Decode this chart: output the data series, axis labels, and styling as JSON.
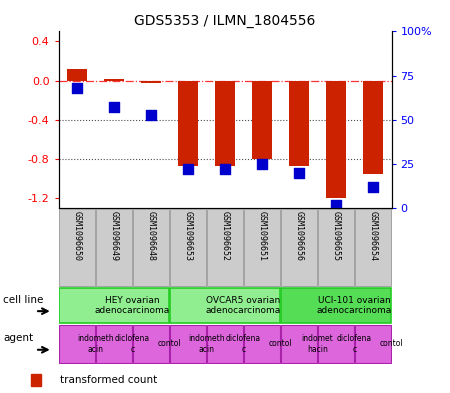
{
  "title": "GDS5353 / ILMN_1804556",
  "samples": [
    "GSM1096650",
    "GSM1096649",
    "GSM1096648",
    "GSM1096653",
    "GSM1096652",
    "GSM1096651",
    "GSM1096656",
    "GSM1096655",
    "GSM1096654"
  ],
  "red_values": [
    0.12,
    0.02,
    -0.02,
    -0.87,
    -0.87,
    -0.8,
    -0.87,
    -1.2,
    -0.95
  ],
  "blue_values": [
    68,
    57,
    53,
    22,
    22,
    25,
    20,
    2,
    12
  ],
  "ylim_left": [
    -1.3,
    0.5
  ],
  "ylim_right": [
    0,
    100
  ],
  "left_ticks": [
    -1.2,
    -0.8,
    -0.4,
    0.0,
    0.4
  ],
  "right_ticks": [
    0,
    25,
    50,
    75,
    100
  ],
  "right_tick_labels": [
    "0",
    "25",
    "50",
    "75",
    "100%"
  ],
  "cell_line_groups": [
    {
      "label": "HEY ovarian\nadenocarcinoma",
      "start": 0,
      "end": 3,
      "color": "#90EE90",
      "border": "#22CC22"
    },
    {
      "label": "OVCAR5 ovarian\nadenocarcinoma",
      "start": 3,
      "end": 6,
      "color": "#90EE90",
      "border": "#22CC22"
    },
    {
      "label": "UCI-101 ovarian\nadenocarcinoma",
      "start": 6,
      "end": 9,
      "color": "#55DD55",
      "border": "#22CC22"
    }
  ],
  "agent_groups": [
    {
      "label": "indometh\nacin",
      "start": 0,
      "end": 1
    },
    {
      "label": "diclofena\nc",
      "start": 1,
      "end": 2
    },
    {
      "label": "contol",
      "start": 2,
      "end": 3
    },
    {
      "label": "indometh\nacin",
      "start": 3,
      "end": 4
    },
    {
      "label": "diclofena\nc",
      "start": 4,
      "end": 5
    },
    {
      "label": "contol",
      "start": 5,
      "end": 6
    },
    {
      "label": "indomet\nhacin",
      "start": 6,
      "end": 7
    },
    {
      "label": "diclofena\nc",
      "start": 7,
      "end": 8
    },
    {
      "label": "contol",
      "start": 8,
      "end": 9
    }
  ],
  "bar_color": "#CC2200",
  "dot_color": "#0000CC",
  "agent_color": "#DD66DD",
  "agent_border": "#AA22AA",
  "sample_bg": "#CCCCCC",
  "sample_border": "#888888"
}
